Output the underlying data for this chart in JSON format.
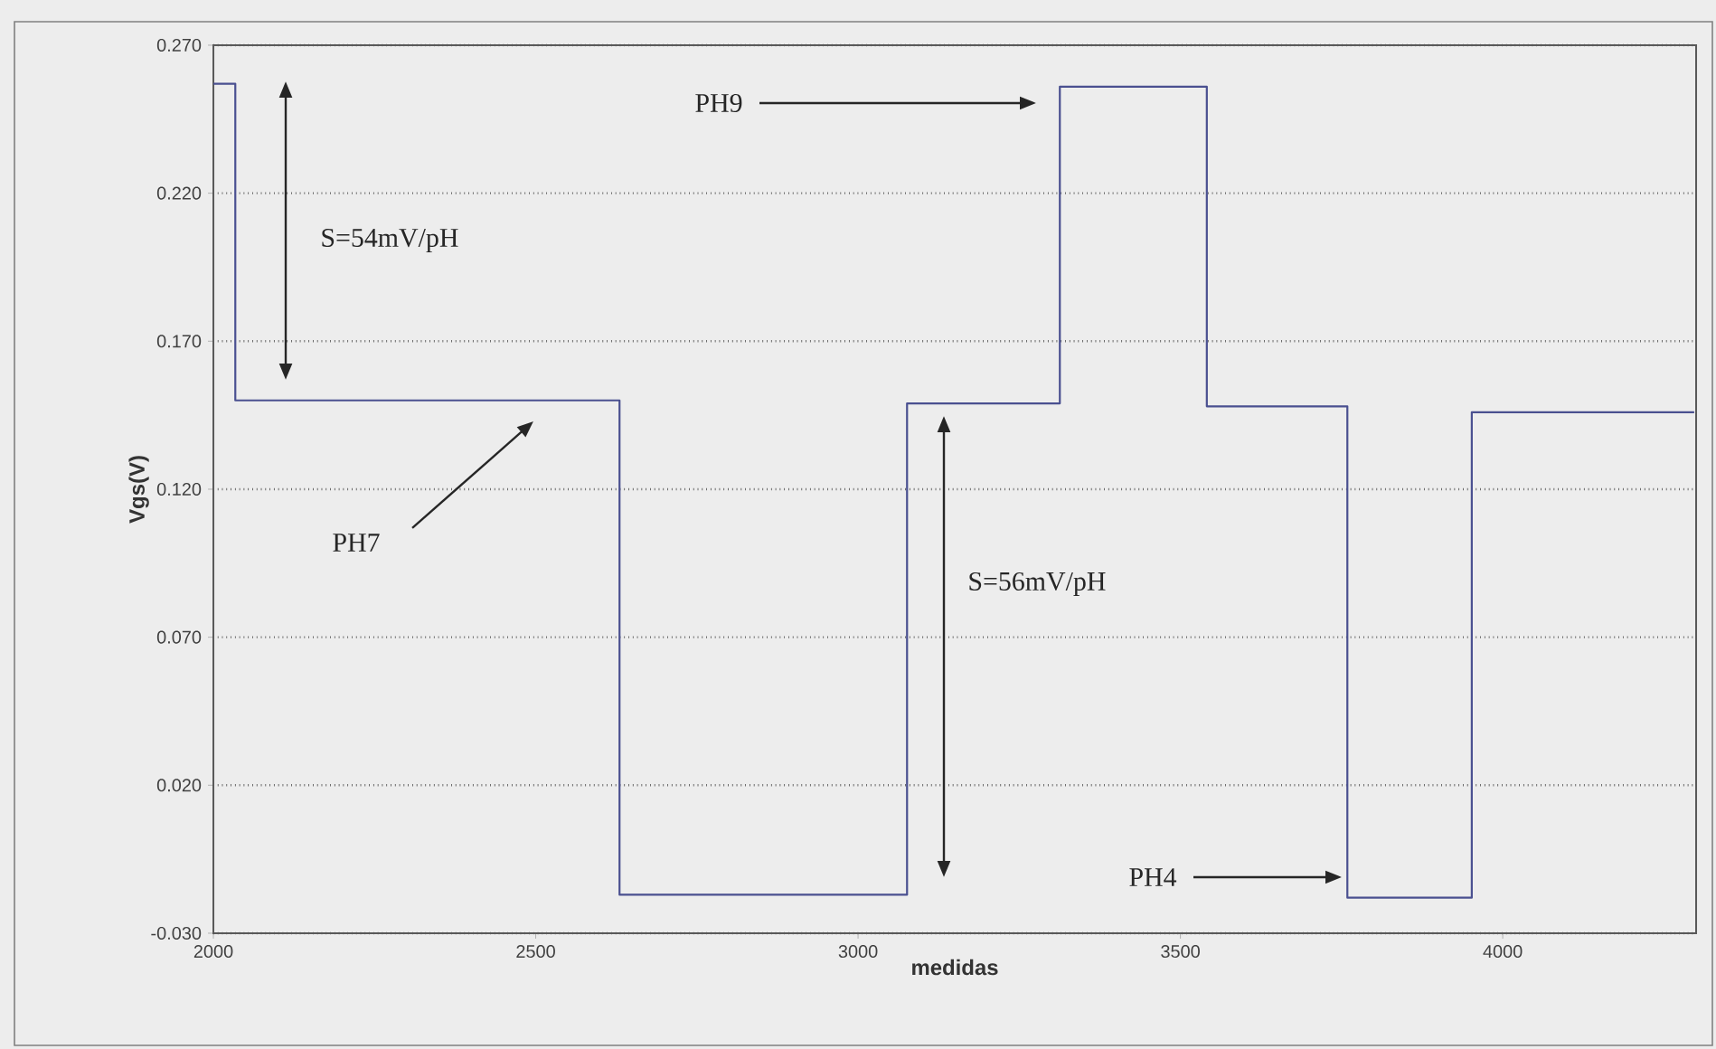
{
  "chart_data": {
    "type": "step",
    "xlabel": "medidas",
    "ylabel": "Vgs(V)",
    "x": [
      2000,
      2034,
      2630,
      3076,
      3313,
      3541,
      3759,
      3952,
      4297
    ],
    "series": [
      {
        "color": "#4a5090",
        "values": [
          0.257,
          0.15,
          -0.017,
          0.149,
          0.256,
          0.148,
          -0.018,
          0.146,
          0.146
        ]
      }
    ],
    "xlim": [
      2000,
      4300
    ],
    "xticks": [
      2000,
      2500,
      3000,
      3500,
      4000
    ],
    "ylim": [
      -0.03,
      0.27
    ],
    "yticks": [
      {
        "value": -0.03,
        "label": "-0.030"
      },
      {
        "value": 0.02,
        "label": "0.020"
      },
      {
        "value": 0.07,
        "label": "0.070"
      },
      {
        "value": 0.12,
        "label": "0.120"
      },
      {
        "value": 0.17,
        "label": "0.170"
      },
      {
        "value": 0.22,
        "label": "0.220"
      },
      {
        "value": 0.27,
        "label": "0.270"
      }
    ],
    "grid": "y",
    "line_style": "solid",
    "marker": "none",
    "annotations": [
      "PH9",
      "PH7",
      "PH4",
      "S=54mV/pH",
      "S=56mV/pH"
    ]
  }
}
